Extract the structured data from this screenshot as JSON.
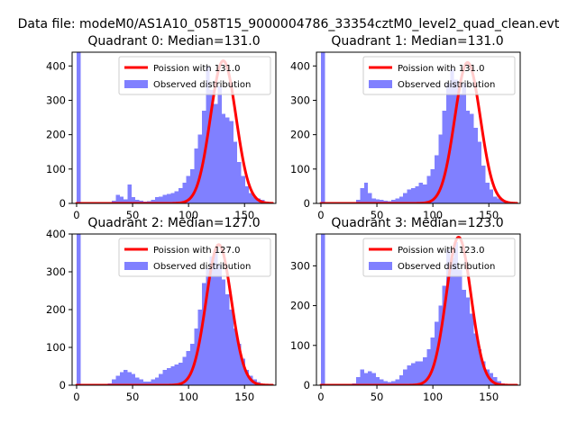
{
  "figure": {
    "suptitle": "Data file: modeM0/AS1A10_058T15_9000004786_33354cztM0_level2_quad_clean.evt"
  },
  "colors": {
    "observed": "#8080ff",
    "poisson": "#ff0000",
    "axes": "#000000",
    "background": "#ffffff"
  },
  "chart_data": [
    {
      "type": "bar",
      "title": "Quadrant 0: Median=131.0",
      "xlim": [
        -4,
        178
      ],
      "ylim": [
        0,
        440
      ],
      "xticks": [
        0,
        50,
        100,
        150
      ],
      "yticks": [
        0,
        100,
        200,
        300,
        400
      ],
      "legend_position": "top-right",
      "series": [
        {
          "name": "Poission with 131.0",
          "kind": "line",
          "mean": 131.0,
          "peak": 415,
          "x_range": [
            0,
            175
          ]
        },
        {
          "name": "Observed distribution",
          "kind": "histogram",
          "bin_width": 3.5,
          "bin_starts": [
            0,
            31.5,
            35,
            38.5,
            42,
            45.5,
            49,
            52.5,
            56,
            59.5,
            63,
            66.5,
            70,
            73.5,
            77,
            80.5,
            84,
            87.5,
            91,
            94.5,
            98,
            101.5,
            105,
            108.5,
            112,
            115.5,
            119,
            122.5,
            126,
            129.5,
            133,
            136.5,
            140,
            143.5,
            147,
            150.5,
            154,
            157.5,
            161,
            164.5,
            168,
            171.5
          ],
          "counts": [
            440,
            8,
            25,
            20,
            12,
            55,
            18,
            10,
            8,
            5,
            6,
            10,
            18,
            20,
            25,
            28,
            30,
            35,
            45,
            60,
            80,
            100,
            160,
            200,
            270,
            400,
            330,
            290,
            340,
            260,
            250,
            240,
            180,
            120,
            80,
            50,
            30,
            20,
            15,
            10,
            5,
            3
          ]
        }
      ]
    },
    {
      "type": "bar",
      "title": "Quadrant 1: Median=131.0",
      "xlim": [
        -4,
        178
      ],
      "ylim": [
        0,
        440
      ],
      "xticks": [
        0,
        50,
        100,
        150
      ],
      "yticks": [
        0,
        100,
        200,
        300,
        400
      ],
      "legend_position": "top-right",
      "series": [
        {
          "name": "Poission with 131.0",
          "kind": "line",
          "mean": 131.0,
          "peak": 410,
          "x_range": [
            0,
            175
          ]
        },
        {
          "name": "Observed distribution",
          "kind": "histogram",
          "bin_width": 3.5,
          "bin_starts": [
            0,
            31.5,
            35,
            38.5,
            42,
            45.5,
            49,
            52.5,
            56,
            59.5,
            63,
            66.5,
            70,
            73.5,
            77,
            80.5,
            84,
            87.5,
            91,
            94.5,
            98,
            101.5,
            105,
            108.5,
            112,
            115.5,
            119,
            122.5,
            126,
            129.5,
            133,
            136.5,
            140,
            143.5,
            147,
            150.5,
            154,
            157.5,
            161,
            164.5,
            168,
            171.5
          ],
          "counts": [
            440,
            10,
            45,
            60,
            30,
            15,
            12,
            10,
            8,
            6,
            10,
            15,
            20,
            30,
            40,
            45,
            50,
            60,
            55,
            80,
            100,
            140,
            200,
            270,
            350,
            390,
            360,
            320,
            350,
            270,
            260,
            220,
            180,
            110,
            60,
            40,
            20,
            15,
            10,
            5,
            3,
            2
          ]
        }
      ]
    },
    {
      "type": "bar",
      "title": "Quadrant 2: Median=127.0",
      "xlim": [
        -4,
        178
      ],
      "ylim": [
        0,
        400
      ],
      "xticks": [
        0,
        50,
        100,
        150
      ],
      "yticks": [
        0,
        100,
        200,
        300,
        400
      ],
      "legend_position": "top-right",
      "series": [
        {
          "name": "Poission with 127.0",
          "kind": "line",
          "mean": 127.0,
          "peak": 372,
          "x_range": [
            0,
            175
          ]
        },
        {
          "name": "Observed distribution",
          "kind": "histogram",
          "bin_width": 3.5,
          "bin_starts": [
            0,
            28,
            31.5,
            35,
            38.5,
            42,
            45.5,
            49,
            52.5,
            56,
            59.5,
            63,
            66.5,
            70,
            73.5,
            77,
            80.5,
            84,
            87.5,
            91,
            94.5,
            98,
            101.5,
            105,
            108.5,
            112,
            115.5,
            119,
            122.5,
            126,
            129.5,
            133,
            136.5,
            140,
            143.5,
            147,
            150.5,
            154,
            157.5,
            161,
            164.5,
            168
          ],
          "counts": [
            400,
            5,
            15,
            25,
            35,
            40,
            35,
            30,
            20,
            15,
            10,
            10,
            15,
            20,
            30,
            40,
            45,
            50,
            55,
            60,
            75,
            90,
            110,
            150,
            200,
            270,
            310,
            340,
            360,
            320,
            280,
            240,
            200,
            150,
            110,
            70,
            40,
            25,
            15,
            8,
            4,
            2
          ]
        }
      ]
    },
    {
      "type": "bar",
      "title": "Quadrant 3: Median=123.0",
      "xlim": [
        -4,
        178
      ],
      "ylim": [
        0,
        380
      ],
      "xticks": [
        0,
        50,
        100,
        150
      ],
      "yticks": [
        0,
        100,
        200,
        300
      ],
      "legend_position": "top-right",
      "series": [
        {
          "name": "Poission with 123.0",
          "kind": "line",
          "mean": 123.0,
          "peak": 372,
          "x_range": [
            0,
            175
          ]
        },
        {
          "name": "Observed distribution",
          "kind": "histogram",
          "bin_width": 3.5,
          "bin_starts": [
            0,
            28,
            31.5,
            35,
            38.5,
            42,
            45.5,
            49,
            52.5,
            56,
            59.5,
            63,
            66.5,
            70,
            73.5,
            77,
            80.5,
            84,
            87.5,
            91,
            94.5,
            98,
            101.5,
            105,
            108.5,
            112,
            115.5,
            119,
            122.5,
            126,
            129.5,
            133,
            136.5,
            140,
            143.5,
            147,
            150.5,
            154,
            157.5,
            161,
            164.5,
            168
          ],
          "counts": [
            380,
            5,
            20,
            40,
            30,
            35,
            30,
            20,
            15,
            10,
            8,
            10,
            15,
            25,
            40,
            50,
            55,
            60,
            60,
            70,
            90,
            120,
            160,
            200,
            250,
            340,
            320,
            360,
            290,
            240,
            220,
            180,
            130,
            90,
            60,
            40,
            30,
            20,
            10,
            5,
            3,
            2
          ]
        }
      ]
    }
  ]
}
